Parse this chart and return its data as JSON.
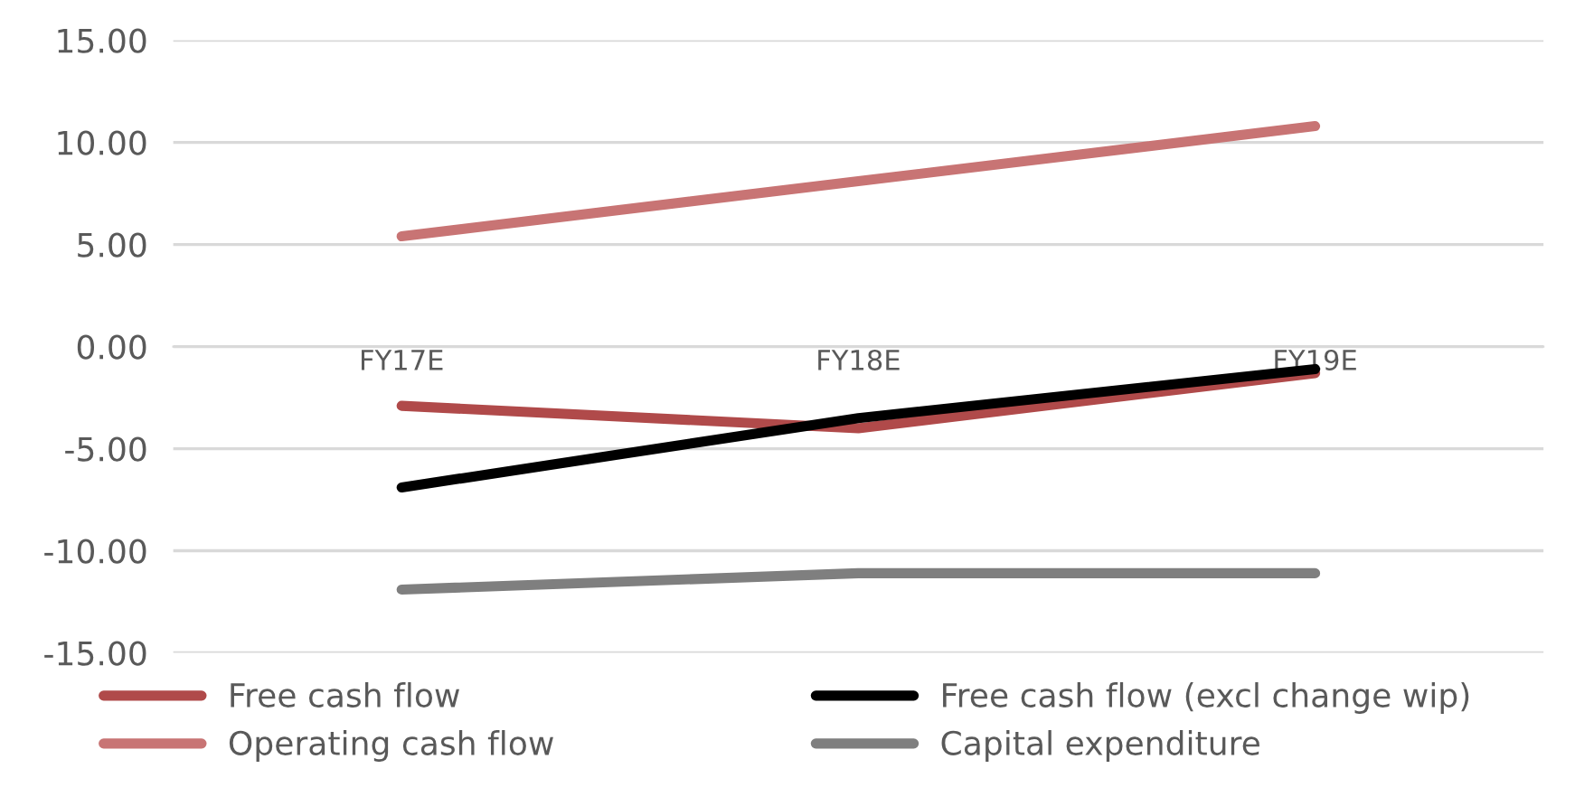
{
  "chart_data": {
    "type": "line",
    "categories": [
      "FY17E",
      "FY18E",
      "FY19E"
    ],
    "series": [
      {
        "name": "Free cash flow",
        "color": "#b04a4a",
        "values": [
          -2.9,
          -4.0,
          -1.3
        ]
      },
      {
        "name": "Free cash flow (excl change wip)",
        "color": "#000000",
        "values": [
          -6.9,
          -3.5,
          -1.1
        ]
      },
      {
        "name": "Operating cash flow",
        "color": "#c87474",
        "values": [
          5.4,
          8.1,
          10.8
        ]
      },
      {
        "name": "Capital expenditure",
        "color": "#7f7f7f",
        "values": [
          -11.9,
          -11.1,
          -11.1
        ]
      }
    ],
    "ylim": [
      -15,
      15
    ],
    "yticks": [
      {
        "value": -15,
        "label": "-15.00"
      },
      {
        "value": -10,
        "label": "-10.00"
      },
      {
        "value": -5,
        "label": "-5.00"
      },
      {
        "value": 0,
        "label": "0.00"
      },
      {
        "value": 5,
        "label": "5.00"
      },
      {
        "value": 10,
        "label": "10.00"
      },
      {
        "value": 15,
        "label": "15.00"
      }
    ],
    "grid": "y",
    "legend": "bottom",
    "marker": "none",
    "line_style": "solid"
  }
}
